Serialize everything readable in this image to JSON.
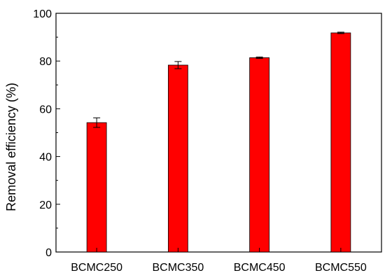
{
  "chart_data": {
    "type": "bar",
    "title": "",
    "xlabel": "",
    "ylabel": "Removal efficiency (%)",
    "categories": [
      "BCMC250",
      "BCMC350",
      "BCMC450",
      "BCMC550"
    ],
    "values": [
      54.2,
      78.3,
      81.4,
      91.8
    ],
    "errors": [
      2.0,
      1.5,
      0.3,
      0.3
    ],
    "ylim": [
      0,
      100
    ],
    "yticks": [
      "0",
      "20",
      "40",
      "60",
      "80",
      "100"
    ],
    "bar_color": "#ff0000",
    "grid": false,
    "legend": "none"
  }
}
